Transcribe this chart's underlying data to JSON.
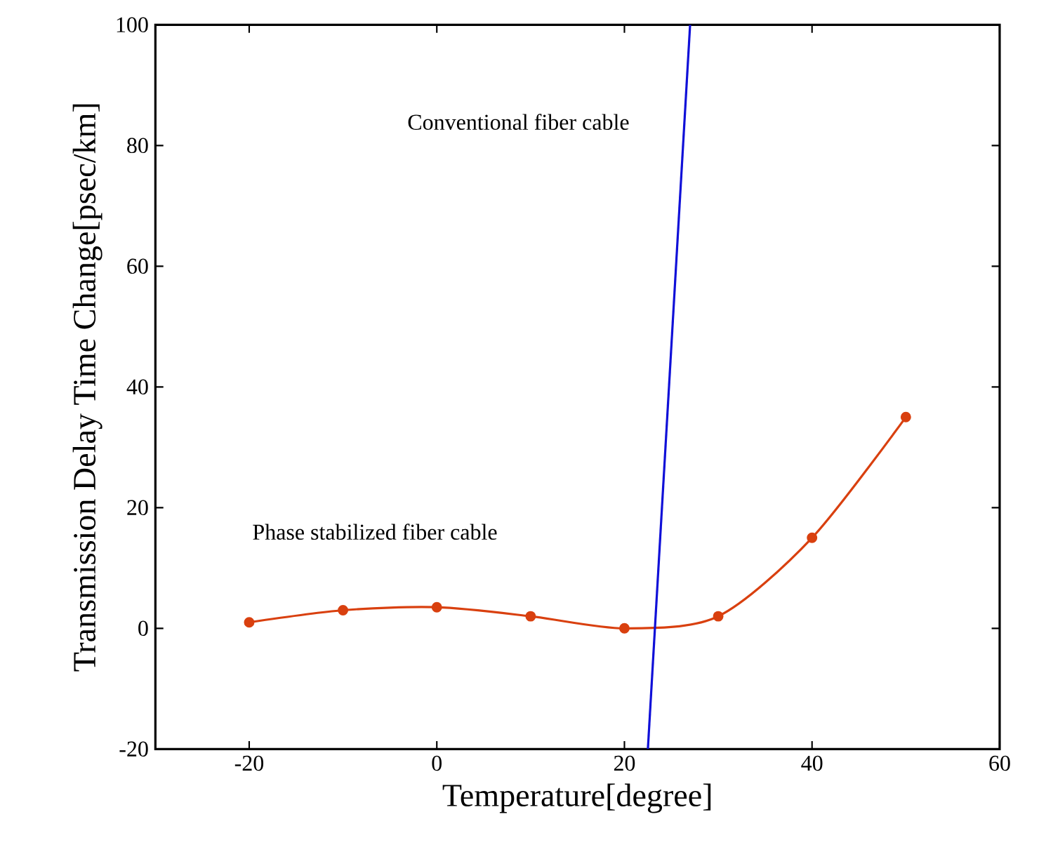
{
  "chart_data": {
    "type": "line",
    "xlabel": "Temperature[degree]",
    "ylabel": "Transmission Delay Time Change[psec/km]",
    "xlim": [
      -30,
      60
    ],
    "ylim": [
      -20,
      100
    ],
    "xticks": [
      -20,
      0,
      20,
      40,
      60
    ],
    "yticks": [
      -20,
      0,
      20,
      40,
      60,
      80,
      100
    ],
    "grid": false,
    "series": [
      {
        "color": "#d9400f",
        "marker": "circle",
        "x": [
          -20,
          -10,
          0,
          10,
          20,
          30,
          40,
          50
        ],
        "values": [
          1,
          3,
          3.5,
          2,
          0,
          2,
          15,
          35
        ]
      },
      {
        "color": "#1010d8",
        "marker": "none",
        "x": [
          22.5,
          27
        ],
        "values": [
          -20,
          100
        ]
      }
    ],
    "annotations": [
      "Conventional fiber cable",
      "Phase stabilized fiber cable"
    ]
  }
}
